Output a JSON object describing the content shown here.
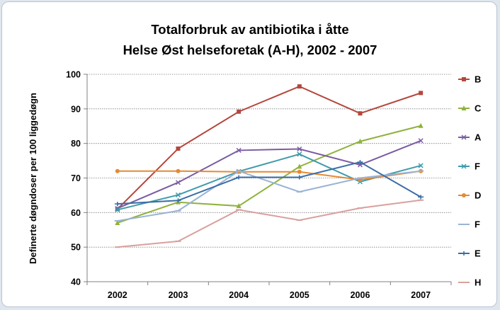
{
  "chart_data": {
    "type": "line",
    "title": [
      "Totalforbruk av antibiotika i åtte",
      "Helse Øst helseforetak (A-H), 2002 - 2007"
    ],
    "ylabel": "Definerte døgndoser per 100 liggedøgn",
    "xlabel": "",
    "categories": [
      "2002",
      "2003",
      "2004",
      "2005",
      "2006",
      "2007"
    ],
    "ylim": [
      40,
      100
    ],
    "yticks": [
      40,
      50,
      60,
      70,
      80,
      90,
      100
    ],
    "grid": "horizontal dotted",
    "legend_position": "right",
    "series": [
      {
        "name": "B",
        "color": "#b5473c",
        "marker": "square",
        "values": [
          61,
          78.5,
          89.2,
          96.5,
          88.7,
          94.6
        ]
      },
      {
        "name": "C",
        "color": "#8fb23d",
        "marker": "triangle",
        "values": [
          57,
          63,
          61.9,
          73.3,
          80.6,
          85.1
        ]
      },
      {
        "name": "A",
        "color": "#7a5ca2",
        "marker": "x",
        "values": [
          61.2,
          68.7,
          78,
          78.4,
          73.8,
          80.8
        ]
      },
      {
        "name": "F",
        "color": "#3e9bab",
        "marker": "x",
        "values": [
          60.8,
          65.1,
          71.9,
          76.9,
          68.9,
          73.6
        ]
      },
      {
        "name": "D",
        "color": "#e58a32",
        "marker": "circle",
        "values": [
          72,
          72,
          71.8,
          71.8,
          69.5,
          72
        ]
      },
      {
        "name": "F",
        "color": "#9ab3d6",
        "marker": "dash",
        "values": [
          57.6,
          60.5,
          72,
          66,
          70,
          72
        ]
      },
      {
        "name": "E",
        "color": "#3a6ea7",
        "marker": "plus",
        "values": [
          62.5,
          63.5,
          70.2,
          70.2,
          74.6,
          64.5
        ]
      },
      {
        "name": "H",
        "color": "#d9a09d",
        "marker": "dash",
        "values": [
          50,
          51.7,
          60.8,
          57.8,
          61.3,
          63.6
        ]
      }
    ]
  }
}
